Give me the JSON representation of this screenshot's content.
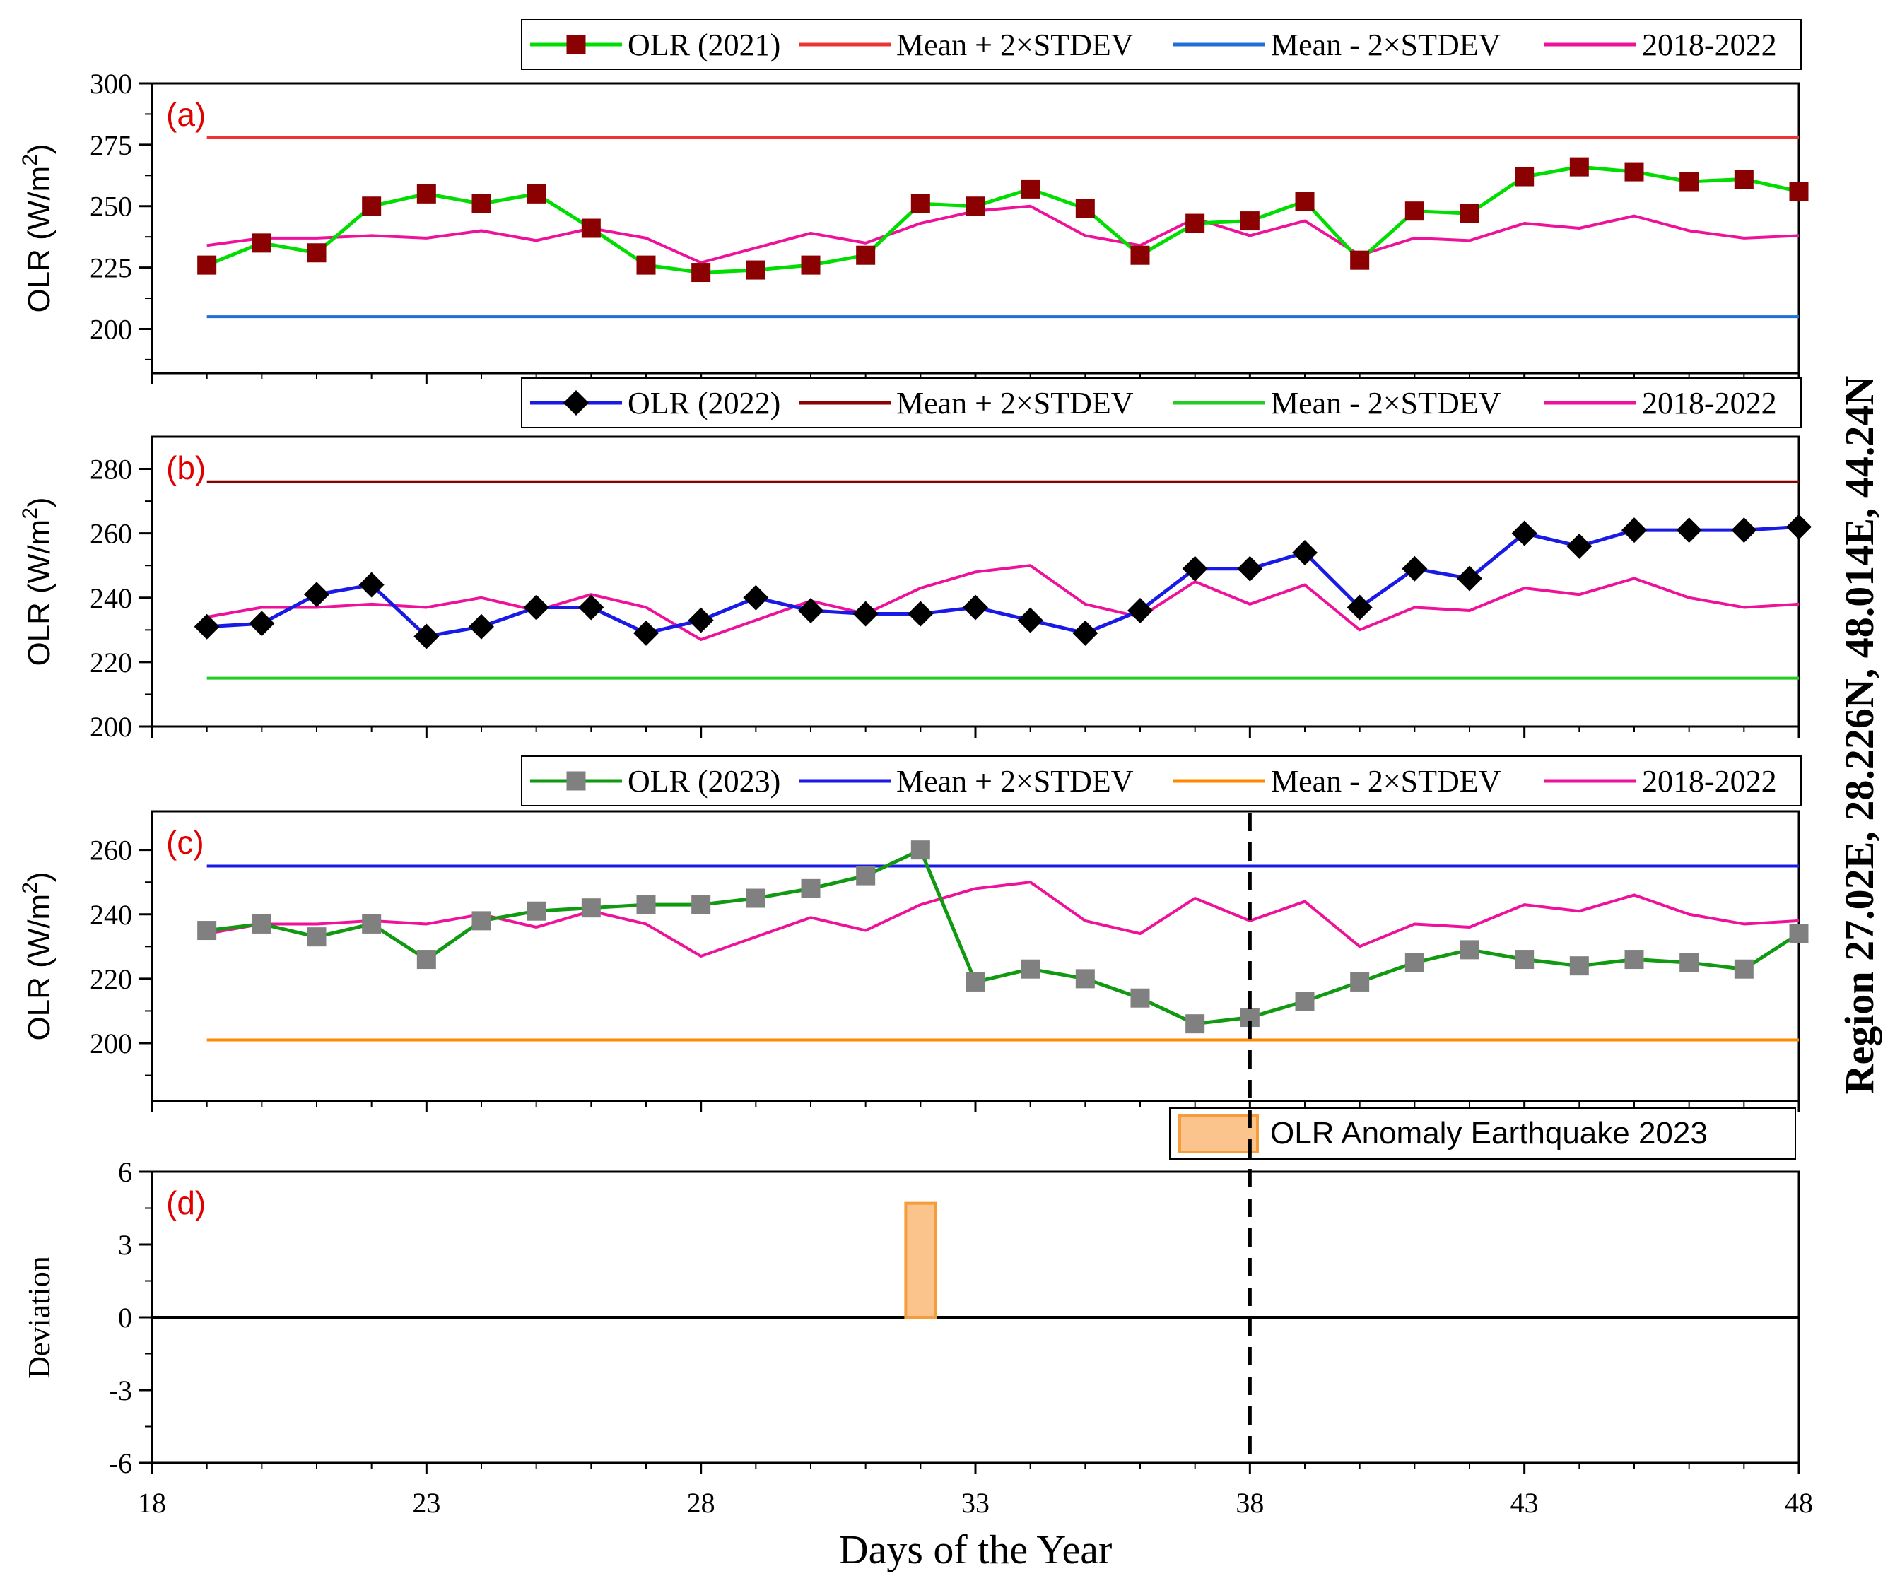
{
  "region_label": "Region 27.02E, 28.226N, 48.014E, 44.24N",
  "x_axis": {
    "label": "Days of the Year",
    "range": [
      18,
      48
    ],
    "ticks": [
      18,
      23,
      28,
      33,
      38,
      43,
      48
    ],
    "tick_labels": [
      "18",
      "23",
      "28",
      "33",
      "38",
      "43",
      "48"
    ]
  },
  "earthquake_day": 38,
  "chart_data": [
    {
      "id": "a",
      "type": "line",
      "panel_label": "(a)",
      "ylabel": "OLR (W/m",
      "ylabel_sup": "2",
      "ylabel_close": ")",
      "ylim": [
        182,
        300
      ],
      "yticks": [
        200,
        225,
        250,
        275,
        300
      ],
      "ytick_labels": [
        "200",
        "225",
        "250",
        "275",
        "300"
      ],
      "x": [
        19,
        20,
        21,
        22,
        23,
        24,
        25,
        26,
        27,
        28,
        29,
        30,
        31,
        32,
        33,
        34,
        35,
        36,
        37,
        38,
        39,
        40,
        41,
        42,
        43,
        44,
        45,
        46,
        47,
        48
      ],
      "series": [
        {
          "name": "OLR (2021)",
          "color": "#00dd00",
          "marker": "square",
          "marker_color": "#8b0000",
          "values": [
            226,
            235,
            231,
            250,
            255,
            251,
            255,
            241,
            226,
            223,
            224,
            226,
            230,
            251,
            250,
            257,
            249,
            230,
            243,
            244,
            252,
            228,
            248,
            247,
            262,
            266,
            264,
            260,
            261,
            256
          ]
        },
        {
          "name": "Mean + 2×STDEV",
          "color": "#ee3333",
          "constant": 278
        },
        {
          "name": "Mean - 2×STDEV",
          "color": "#1f6fd6",
          "constant": 205
        },
        {
          "name": "2018-2022",
          "color": "#ee1199",
          "values": [
            234,
            237,
            237,
            238,
            237,
            240,
            236,
            241,
            237,
            227,
            233,
            239,
            235,
            243,
            248,
            250,
            238,
            234,
            245,
            238,
            244,
            230,
            237,
            236,
            243,
            241,
            246,
            240,
            237,
            238
          ]
        }
      ]
    },
    {
      "id": "b",
      "type": "line",
      "panel_label": "(b)",
      "ylabel": "OLR (W/m",
      "ylabel_sup": "2",
      "ylabel_close": ")",
      "ylim": [
        200,
        290
      ],
      "yticks": [
        200,
        220,
        240,
        260,
        280
      ],
      "ytick_labels": [
        "200",
        "220",
        "240",
        "260",
        "280"
      ],
      "x": [
        19,
        20,
        21,
        22,
        23,
        24,
        25,
        26,
        27,
        28,
        29,
        30,
        31,
        32,
        33,
        34,
        35,
        36,
        37,
        38,
        39,
        40,
        41,
        42,
        43,
        44,
        45,
        46,
        47,
        48
      ],
      "series": [
        {
          "name": "OLR (2022)",
          "color": "#1a1ae6",
          "marker": "diamond",
          "marker_color": "#000000",
          "values": [
            231,
            232,
            241,
            244,
            228,
            231,
            237,
            237,
            229,
            233,
            240,
            236,
            235,
            235,
            237,
            233,
            229,
            236,
            249,
            249,
            254,
            237,
            249,
            246,
            260,
            256,
            261,
            261,
            261,
            262
          ]
        },
        {
          "name": "Mean + 2×STDEV",
          "color": "#8b0000",
          "constant": 276
        },
        {
          "name": "Mean - 2×STDEV",
          "color": "#22cc22",
          "constant": 215
        },
        {
          "name": "2018-2022",
          "color": "#ee1199",
          "values": [
            234,
            237,
            237,
            238,
            237,
            240,
            236,
            241,
            237,
            227,
            233,
            239,
            235,
            243,
            248,
            250,
            238,
            234,
            245,
            238,
            244,
            230,
            237,
            236,
            243,
            241,
            246,
            240,
            237,
            238
          ]
        }
      ]
    },
    {
      "id": "c",
      "type": "line",
      "panel_label": "(c)",
      "ylabel": "OLR (W/m",
      "ylabel_sup": "2",
      "ylabel_close": ")",
      "ylim": [
        182,
        272
      ],
      "yticks": [
        200,
        220,
        240,
        260
      ],
      "ytick_labels": [
        "200",
        "220",
        "240",
        "260"
      ],
      "x": [
        19,
        20,
        21,
        22,
        23,
        24,
        25,
        26,
        27,
        28,
        29,
        30,
        31,
        32,
        33,
        34,
        35,
        36,
        37,
        38,
        39,
        40,
        41,
        42,
        43,
        44,
        45,
        46,
        47,
        48
      ],
      "series": [
        {
          "name": "OLR (2023)",
          "color": "#119911",
          "marker": "square",
          "marker_color": "#808080",
          "values": [
            235,
            237,
            233,
            237,
            226,
            238,
            241,
            242,
            243,
            243,
            245,
            248,
            252,
            260,
            219,
            223,
            220,
            214,
            206,
            208,
            213,
            219,
            225,
            229,
            226,
            224,
            226,
            225,
            223,
            234
          ]
        },
        {
          "name": "Mean + 2×STDEV",
          "color": "#1a1ae6",
          "constant": 255
        },
        {
          "name": "Mean - 2×STDEV",
          "color": "#ff8800",
          "constant": 201
        },
        {
          "name": "2018-2022",
          "color": "#ee1199",
          "values": [
            234,
            237,
            237,
            238,
            237,
            240,
            236,
            241,
            237,
            227,
            233,
            239,
            235,
            243,
            248,
            250,
            238,
            234,
            245,
            238,
            244,
            230,
            237,
            236,
            243,
            241,
            246,
            240,
            237,
            238
          ]
        }
      ]
    },
    {
      "id": "d",
      "type": "bar",
      "panel_label": "(d)",
      "ylabel": "Deviation",
      "ylim": [
        -6,
        6
      ],
      "yticks": [
        -6,
        -3,
        0,
        3,
        6
      ],
      "ytick_labels": [
        "-6",
        "-3",
        "0",
        "3",
        "6"
      ],
      "legend_label": "OLR Anomaly Earthquake 2023",
      "bar_color": "#fbc48c",
      "bar_edge": "#f59c3c",
      "bars": [
        {
          "x": 32,
          "value": 4.7
        }
      ]
    }
  ]
}
